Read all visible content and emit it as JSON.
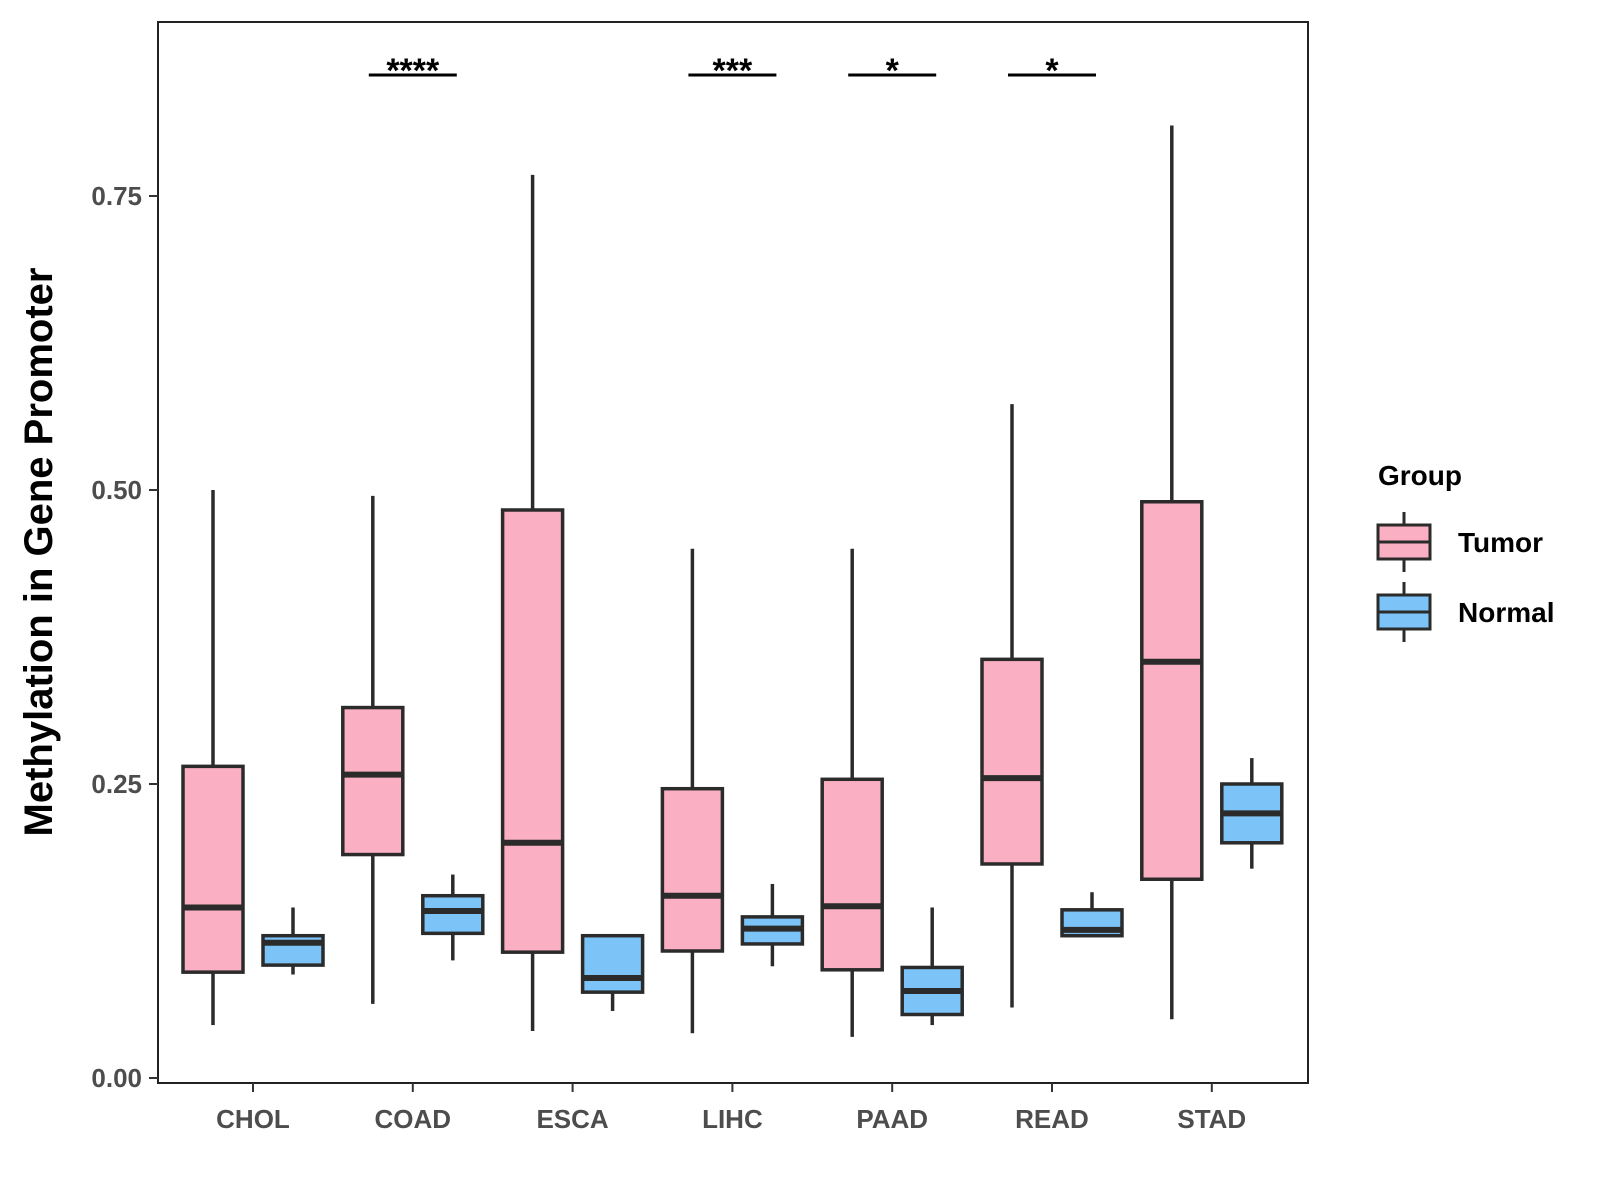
{
  "chart_data": {
    "type": "boxplot",
    "title": "",
    "xlabel": "",
    "ylabel": "Methylation in Gene Promoter",
    "ylim": [
      -0.005,
      0.9
    ],
    "yticks": [
      0.0,
      0.25,
      0.5,
      0.75
    ],
    "ytick_labels": [
      "0.00",
      "0.25",
      "0.50",
      "0.75"
    ],
    "categories": [
      "CHOL",
      "COAD",
      "ESCA",
      "LIHC",
      "PAAD",
      "READ",
      "STAD"
    ],
    "legend": {
      "title": "Group",
      "position": "right",
      "entries": [
        {
          "name": "Tumor",
          "color": "#FBAFC2"
        },
        {
          "name": "Normal",
          "color": "#7CC3F7"
        }
      ]
    },
    "series": [
      {
        "name": "Tumor",
        "color": "#FBAFC2",
        "boxes": [
          {
            "category": "CHOL",
            "whisker_low": 0.045,
            "q1": 0.09,
            "median": 0.145,
            "q3": 0.265,
            "whisker_high": 0.5
          },
          {
            "category": "COAD",
            "whisker_low": 0.063,
            "q1": 0.19,
            "median": 0.258,
            "q3": 0.315,
            "whisker_high": 0.495
          },
          {
            "category": "ESCA",
            "whisker_low": 0.04,
            "q1": 0.107,
            "median": 0.2,
            "q3": 0.483,
            "whisker_high": 0.768
          },
          {
            "category": "LIHC",
            "whisker_low": 0.038,
            "q1": 0.108,
            "median": 0.155,
            "q3": 0.246,
            "whisker_high": 0.45
          },
          {
            "category": "PAAD",
            "whisker_low": 0.035,
            "q1": 0.092,
            "median": 0.146,
            "q3": 0.254,
            "whisker_high": 0.45
          },
          {
            "category": "READ",
            "whisker_low": 0.06,
            "q1": 0.182,
            "median": 0.255,
            "q3": 0.356,
            "whisker_high": 0.573
          },
          {
            "category": "STAD",
            "whisker_low": 0.05,
            "q1": 0.169,
            "median": 0.354,
            "q3": 0.49,
            "whisker_high": 0.81
          }
        ]
      },
      {
        "name": "Normal",
        "color": "#7CC3F7",
        "boxes": [
          {
            "category": "CHOL",
            "whisker_low": 0.088,
            "q1": 0.096,
            "median": 0.115,
            "q3": 0.121,
            "whisker_high": 0.145
          },
          {
            "category": "COAD",
            "whisker_low": 0.1,
            "q1": 0.123,
            "median": 0.142,
            "q3": 0.155,
            "whisker_high": 0.173
          },
          {
            "category": "ESCA",
            "whisker_low": 0.057,
            "q1": 0.073,
            "median": 0.085,
            "q3": 0.121,
            "whisker_high": 0.121
          },
          {
            "category": "LIHC",
            "whisker_low": 0.095,
            "q1": 0.114,
            "median": 0.127,
            "q3": 0.137,
            "whisker_high": 0.165
          },
          {
            "category": "PAAD",
            "whisker_low": 0.045,
            "q1": 0.054,
            "median": 0.074,
            "q3": 0.094,
            "whisker_high": 0.145
          },
          {
            "category": "READ",
            "whisker_low": 0.121,
            "q1": 0.121,
            "median": 0.126,
            "q3": 0.143,
            "whisker_high": 0.158
          },
          {
            "category": "STAD",
            "whisker_low": 0.178,
            "q1": 0.2,
            "median": 0.225,
            "q3": 0.25,
            "whisker_high": 0.272
          }
        ]
      }
    ],
    "annotations": [
      {
        "category": "COAD",
        "text": "****"
      },
      {
        "category": "LIHC",
        "text": "***"
      },
      {
        "category": "PAAD",
        "text": "*"
      },
      {
        "category": "READ",
        "text": "*"
      }
    ]
  }
}
